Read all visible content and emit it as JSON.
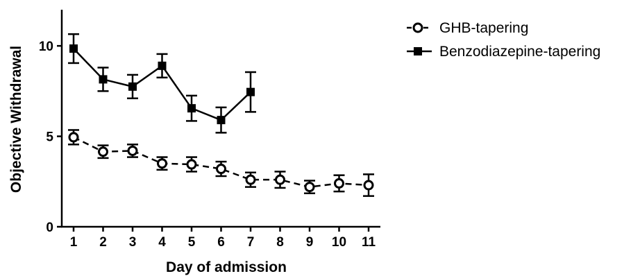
{
  "chart_data": {
    "type": "line",
    "xlabel": "Day of admission",
    "ylabel": "Objective Withdrawal",
    "x_ticks": [
      1,
      2,
      3,
      4,
      5,
      6,
      7,
      8,
      9,
      10,
      11
    ],
    "y_ticks": [
      0,
      5,
      10
    ],
    "xlim": [
      0.6,
      11.4
    ],
    "ylim": [
      0,
      12
    ],
    "grid": false,
    "legend": "top-right",
    "series": [
      {
        "name": "GHB-tapering",
        "marker": "open-circle",
        "line_style": "dashed",
        "x": [
          1,
          2,
          3,
          4,
          5,
          6,
          7,
          8,
          9,
          10,
          11
        ],
        "y": [
          4.95,
          4.15,
          4.2,
          3.5,
          3.45,
          3.2,
          2.6,
          2.6,
          2.2,
          2.4,
          2.3
        ],
        "err": [
          0.4,
          0.35,
          0.35,
          0.35,
          0.4,
          0.4,
          0.4,
          0.45,
          0.35,
          0.45,
          0.6
        ]
      },
      {
        "name": "Benzodiazepine-tapering",
        "marker": "filled-square",
        "line_style": "solid",
        "x": [
          1,
          2,
          3,
          4,
          5,
          6,
          7
        ],
        "y": [
          9.85,
          8.15,
          7.75,
          8.9,
          6.55,
          5.9,
          7.45
        ],
        "err": [
          0.8,
          0.65,
          0.65,
          0.65,
          0.7,
          0.7,
          1.1
        ]
      }
    ]
  }
}
